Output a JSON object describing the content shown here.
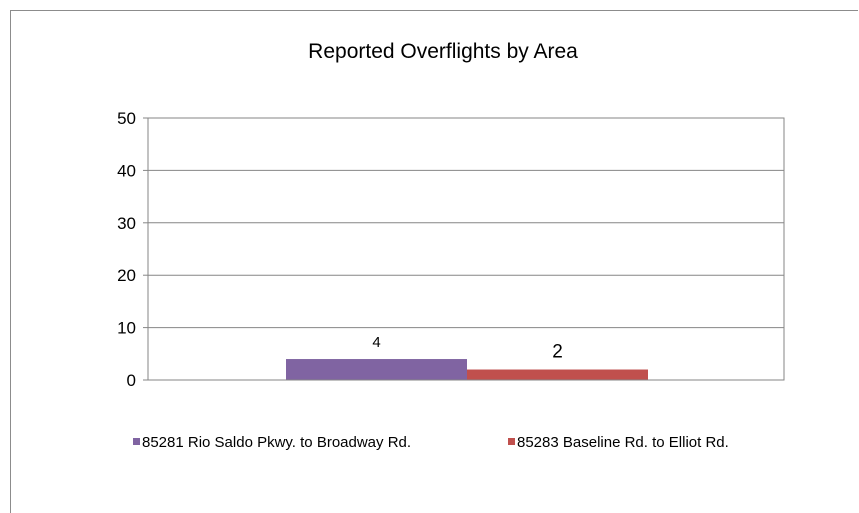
{
  "chart_data": {
    "type": "bar",
    "title": "Reported Overflights by Area",
    "xlabel": "",
    "ylabel": "",
    "ylim": [
      0,
      50
    ],
    "yticks": [
      0,
      10,
      20,
      30,
      40,
      50
    ],
    "grid": true,
    "legend_position": "bottom",
    "series": [
      {
        "name": "85281 Rio Saldo Pkwy. to Broadway Rd.",
        "values": [
          4
        ],
        "color": "#8064a2",
        "data_label": "4"
      },
      {
        "name": "85283 Baseline Rd. to Elliot Rd.",
        "values": [
          2
        ],
        "color": "#c0504d",
        "data_label": "2"
      }
    ]
  }
}
